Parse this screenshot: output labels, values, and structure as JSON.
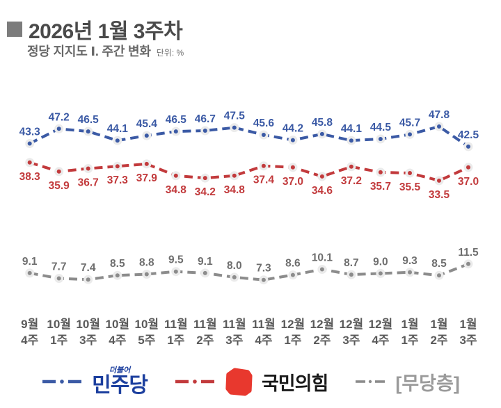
{
  "header": {
    "title": "2026년 1월 3주차",
    "subtitle": "정당 지지도 Ⅰ. 주간 변화",
    "unit_label": "단위: %"
  },
  "chart_data": {
    "type": "line",
    "title": "정당 지지도 주간 변화",
    "unit": "%",
    "grid": false,
    "ylim": [
      0,
      55
    ],
    "categories": [
      {
        "month": "9월",
        "week": "4주"
      },
      {
        "month": "10월",
        "week": "1주"
      },
      {
        "month": "10월",
        "week": "3주"
      },
      {
        "month": "10월",
        "week": "4주"
      },
      {
        "month": "10월",
        "week": "5주"
      },
      {
        "month": "11월",
        "week": "1주"
      },
      {
        "month": "11월",
        "week": "2주"
      },
      {
        "month": "11월",
        "week": "3주"
      },
      {
        "month": "11월",
        "week": "4주"
      },
      {
        "month": "12월",
        "week": "1주"
      },
      {
        "month": "12월",
        "week": "2주"
      },
      {
        "month": "12월",
        "week": "3주"
      },
      {
        "month": "12월",
        "week": "4주"
      },
      {
        "month": "1월",
        "week": "1주"
      },
      {
        "month": "1월",
        "week": "2주"
      },
      {
        "month": "1월",
        "week": "3주"
      }
    ],
    "series": [
      {
        "id": "democratic-party",
        "name": "민주당",
        "color": "#3b5aa5",
        "label_color": "#3b5aa5",
        "label_position": "above",
        "values": [
          43.3,
          47.2,
          46.5,
          44.1,
          45.4,
          46.5,
          46.7,
          47.5,
          45.6,
          44.2,
          45.8,
          44.1,
          44.5,
          45.7,
          47.8,
          42.5
        ]
      },
      {
        "id": "people-power-party",
        "name": "국민의힘",
        "color": "#c23a3c",
        "label_color": "#c23a3c",
        "label_position": "below",
        "values": [
          38.3,
          35.9,
          36.7,
          37.3,
          37.9,
          34.8,
          34.2,
          34.8,
          37.4,
          37.0,
          34.6,
          37.2,
          35.7,
          35.5,
          33.5,
          37.0
        ]
      },
      {
        "id": "independents",
        "name": "무당층",
        "color": "#8c8c8c",
        "label_color": "#6e6e6e",
        "label_position": "above",
        "values": [
          9.1,
          7.7,
          7.4,
          8.5,
          8.8,
          9.5,
          9.1,
          8.0,
          7.3,
          8.6,
          10.1,
          8.7,
          9.0,
          9.3,
          8.5,
          11.5
        ]
      }
    ],
    "axis_label_color": "#5a5a5a",
    "point_halo_color": "#ebebeb"
  },
  "legend": {
    "items": [
      {
        "id": "minjoo",
        "label": "민주당",
        "overline": "더불어",
        "marker_color": "#3b5aa5",
        "text_color": "#1c3f9e"
      },
      {
        "id": "ppp",
        "label": "국민의힘",
        "marker_color": "#c23a3c",
        "logo_color": "#e8382e",
        "text_color": "#1a1a1a"
      },
      {
        "id": "indep",
        "label": "[무당층]",
        "marker_color": "#8c8c8c",
        "text_color": "#9a9a9a"
      }
    ]
  }
}
